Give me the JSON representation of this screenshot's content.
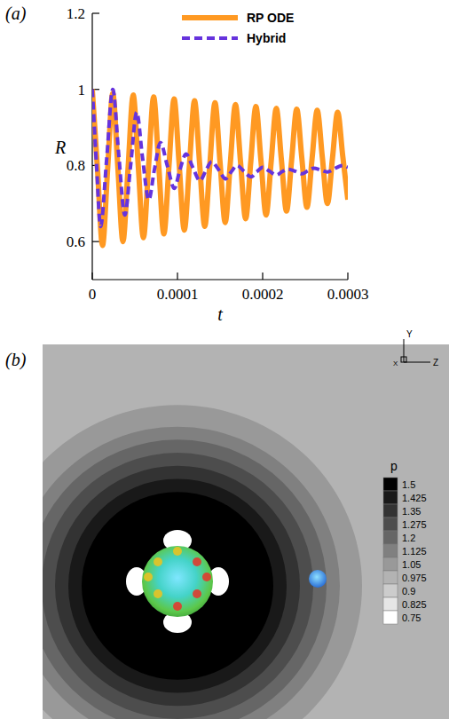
{
  "chart_data": [
    {
      "type": "line",
      "panel_label": "(a)",
      "xlabel": "t",
      "ylabel": "R",
      "xlim": [
        0,
        0.0003
      ],
      "ylim": [
        0.5,
        1.2
      ],
      "xticks": [
        0,
        0.0001,
        0.0002,
        0.0003
      ],
      "yticks": [
        0.6,
        0.8,
        1,
        1.2
      ],
      "grid": false,
      "legend": "top-right",
      "series": [
        {
          "name": "RP ODE",
          "color": "#ff9922",
          "line_style": "solid",
          "x": [
            0,
            6e-06,
            1.2e-05,
            1.8e-05,
            2.4e-05,
            3e-05,
            3.6e-05,
            4.2e-05,
            4.8e-05,
            5.4e-05,
            6e-05,
            6.6e-05,
            7.2e-05,
            7.8e-05,
            8.4e-05,
            9e-05,
            9.6e-05,
            0.000102,
            0.000108,
            0.000114,
            0.00012,
            0.000126,
            0.000132,
            0.000138,
            0.000144,
            0.00015,
            0.000156,
            0.000162,
            0.000168,
            0.000174,
            0.00018,
            0.000186,
            0.000192,
            0.000198,
            0.000204,
            0.00021,
            0.000216,
            0.000222,
            0.000228,
            0.000234,
            0.00024,
            0.000246,
            0.000252,
            0.000258,
            0.000264,
            0.00027,
            0.000276,
            0.000282,
            0.000288,
            0.000294,
            0.0003
          ],
          "values": [
            1.0,
            0.795,
            0.59,
            0.79,
            0.99,
            0.795,
            0.6,
            0.793,
            0.985,
            0.798,
            0.61,
            0.795,
            0.98,
            0.8,
            0.62,
            0.798,
            0.975,
            0.803,
            0.63,
            0.8,
            0.97,
            0.805,
            0.64,
            0.803,
            0.965,
            0.808,
            0.65,
            0.805,
            0.96,
            0.81,
            0.66,
            0.808,
            0.955,
            0.813,
            0.67,
            0.81,
            0.95,
            0.815,
            0.68,
            0.814,
            0.948,
            0.819,
            0.69,
            0.818,
            0.945,
            0.823,
            0.7,
            0.82,
            0.94,
            0.825,
            0.71
          ]
        },
        {
          "name": "Hybrid",
          "color": "#6633dd",
          "line_style": "dashed",
          "x": [
            0,
            5e-06,
            1e-05,
            1.7e-05,
            2.4e-05,
            3.1e-05,
            3.8e-05,
            4.5e-05,
            5.2e-05,
            5.9e-05,
            6.6e-05,
            7.3e-05,
            8e-05,
            8.8e-05,
            9.6e-05,
            0.000103,
            0.00011,
            0.000118,
            0.000126,
            0.000133,
            0.00014,
            0.000148,
            0.000156,
            0.000163,
            0.00017,
            0.000178,
            0.000186,
            0.000193,
            0.0002,
            0.000208,
            0.000216,
            0.000223,
            0.00023,
            0.000238,
            0.000246,
            0.000253,
            0.00026,
            0.000268,
            0.000276,
            0.000283,
            0.00029,
            0.000295,
            0.0003
          ],
          "values": [
            1.0,
            0.8,
            0.64,
            0.82,
            1.0,
            0.83,
            0.67,
            0.8,
            0.94,
            0.82,
            0.71,
            0.79,
            0.86,
            0.8,
            0.74,
            0.79,
            0.83,
            0.795,
            0.76,
            0.785,
            0.81,
            0.79,
            0.765,
            0.783,
            0.8,
            0.785,
            0.77,
            0.783,
            0.795,
            0.785,
            0.775,
            0.784,
            0.79,
            0.785,
            0.778,
            0.786,
            0.793,
            0.788,
            0.783,
            0.79,
            0.798,
            0.8,
            0.795
          ]
        }
      ]
    },
    {
      "type": "contour",
      "panel_label": "(b)",
      "triad": {
        "y": "Y",
        "z": "Z",
        "x": "X"
      },
      "colorbar": {
        "title": "p",
        "range": [
          0.75,
          1.5
        ],
        "ticks": [
          1.5,
          1.425,
          1.35,
          1.275,
          1.2,
          1.125,
          1.05,
          0.975,
          0.9,
          0.825,
          0.75
        ]
      }
    }
  ]
}
